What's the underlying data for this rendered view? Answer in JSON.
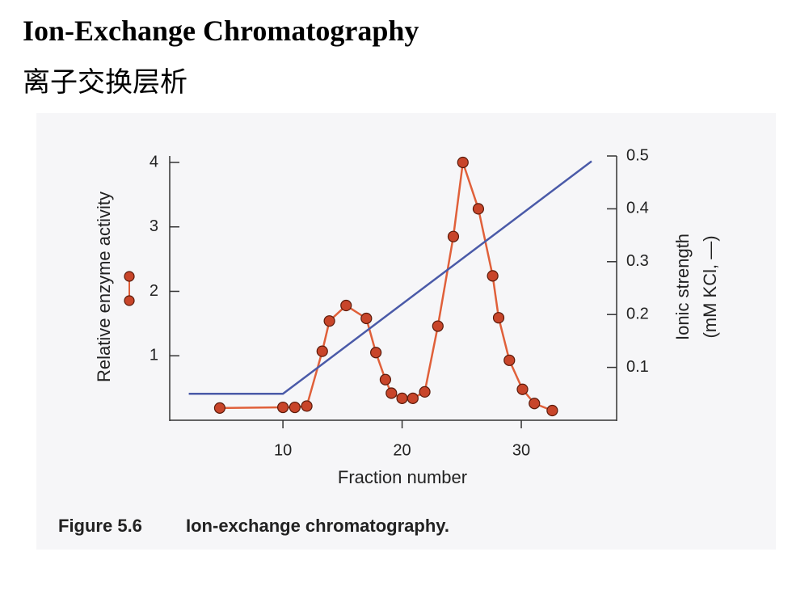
{
  "title": "Ion-Exchange Chromatography",
  "subtitle": "离子交换层析",
  "chart_data": {
    "type": "line",
    "xlabel": "Fraction number",
    "ylabel": "Relative enzyme activity",
    "y2label": [
      "Ionic strength",
      "(mM KCl, —)"
    ],
    "xlim": [
      0.5,
      38
    ],
    "xticks": [
      10,
      20,
      30
    ],
    "ylim": [
      0,
      4.1
    ],
    "yticks": [
      1,
      2,
      3,
      4
    ],
    "y2lim": [
      0,
      0.5
    ],
    "y2ticks": [
      0.1,
      0.2,
      0.3,
      0.4,
      0.5
    ],
    "series": [
      {
        "name": "Relative enzyme activity",
        "color": "#e0603a",
        "marker_color": "#c8452a",
        "markers": true,
        "x": [
          4.7,
          10,
          11,
          12,
          13.3,
          13.9,
          15.3,
          17,
          17.8,
          18.6,
          19.1,
          20,
          20.9,
          21.9,
          23,
          24.3,
          25.1,
          26.4,
          27.6,
          28.1,
          29,
          30.1,
          31.1,
          32.6
        ],
        "values": [
          0.19,
          0.2,
          0.2,
          0.22,
          1.07,
          1.54,
          1.78,
          1.58,
          1.05,
          0.63,
          0.42,
          0.34,
          0.34,
          0.44,
          1.46,
          2.85,
          4.0,
          3.28,
          2.24,
          1.59,
          0.93,
          0.48,
          0.26,
          0.15
        ]
      },
      {
        "name": "Ionic strength",
        "color": "#4a5aa8",
        "axis": "y2",
        "markers": false,
        "x": [
          2.1,
          10,
          35.9
        ],
        "values": [
          0.05,
          0.05,
          0.49
        ]
      }
    ]
  },
  "caption": {
    "label": "Figure 5.6",
    "text": "Ion-exchange chromatography."
  }
}
